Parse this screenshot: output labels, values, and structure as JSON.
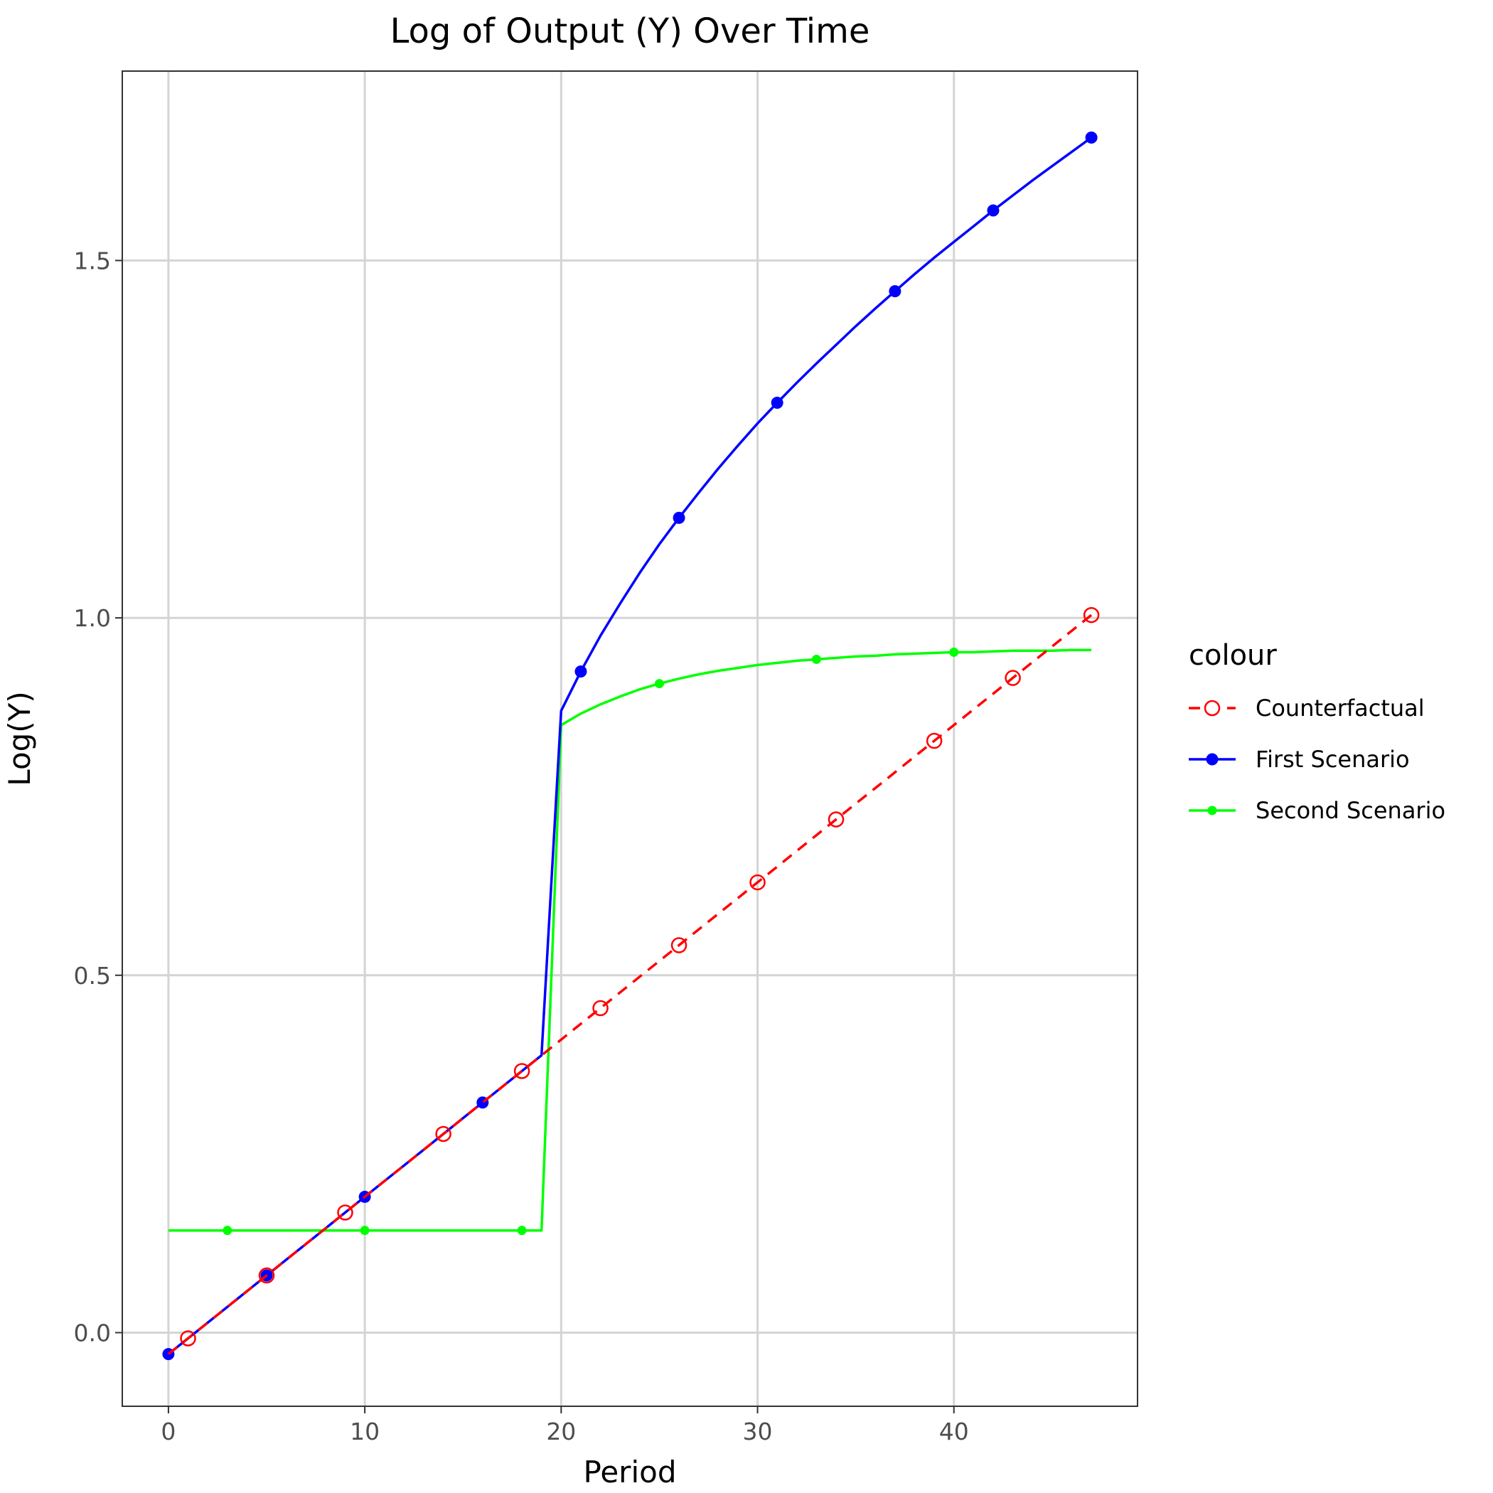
{
  "chart_data": {
    "type": "line",
    "title": "Log of Output (Y) Over Time",
    "xlabel": "Period",
    "ylabel": "Log(Y)",
    "xlim": [
      -2.35,
      49.35
    ],
    "ylim": [
      -0.103,
      1.765
    ],
    "x_ticks": [
      0,
      10,
      20,
      30,
      40
    ],
    "x_tick_labels": [
      "0",
      "10",
      "20",
      "30",
      "40"
    ],
    "y_ticks": [
      0.0,
      0.5,
      1.0,
      1.5
    ],
    "y_tick_labels": [
      "0.0",
      "0.5",
      "1.0",
      "1.5"
    ],
    "grid": true,
    "legend_title": "colour",
    "legend_position": "right",
    "series": [
      {
        "name": "Counterfactual",
        "color": "#ff0000",
        "style": "dashed",
        "marker": "open-circle",
        "x": [
          0,
          1,
          2,
          3,
          4,
          5,
          6,
          7,
          8,
          9,
          10,
          11,
          12,
          13,
          14,
          15,
          16,
          17,
          18,
          19,
          20,
          21,
          22,
          23,
          24,
          25,
          26,
          27,
          28,
          29,
          30,
          31,
          32,
          33,
          34,
          35,
          36,
          37,
          38,
          39,
          40,
          41,
          42,
          43,
          44,
          45,
          46,
          47
        ],
        "y": [
          -0.03,
          -0.008,
          0.014,
          0.036,
          0.058,
          0.08,
          0.102,
          0.124,
          0.146,
          0.168,
          0.19,
          0.212,
          0.234,
          0.256,
          0.278,
          0.3,
          0.322,
          0.344,
          0.366,
          0.388,
          0.41,
          0.432,
          0.454,
          0.476,
          0.498,
          0.52,
          0.542,
          0.564,
          0.586,
          0.608,
          0.63,
          0.652,
          0.674,
          0.696,
          0.718,
          0.74,
          0.762,
          0.784,
          0.806,
          0.828,
          0.85,
          0.872,
          0.894,
          0.916,
          0.938,
          0.96,
          0.982,
          1.004
        ],
        "marker_x": [
          1,
          5,
          9,
          14,
          18,
          22,
          26,
          30,
          34,
          39,
          43,
          47
        ]
      },
      {
        "name": "First Scenario",
        "color": "#0000ff",
        "style": "solid",
        "marker": "filled-circle",
        "x": [
          0,
          1,
          2,
          3,
          4,
          5,
          6,
          7,
          8,
          9,
          10,
          11,
          12,
          13,
          14,
          15,
          16,
          17,
          18,
          19,
          20,
          21,
          22,
          23,
          24,
          25,
          26,
          27,
          28,
          29,
          30,
          31,
          32,
          33,
          34,
          35,
          36,
          37,
          38,
          39,
          40,
          41,
          42,
          43,
          44,
          45,
          46,
          47
        ],
        "y": [
          -0.03,
          -0.008,
          0.014,
          0.036,
          0.058,
          0.08,
          0.102,
          0.124,
          0.146,
          0.168,
          0.19,
          0.212,
          0.234,
          0.256,
          0.278,
          0.3,
          0.322,
          0.344,
          0.366,
          0.388,
          0.87,
          0.925,
          0.975,
          1.02,
          1.063,
          1.103,
          1.14,
          1.175,
          1.209,
          1.241,
          1.272,
          1.301,
          1.329,
          1.356,
          1.382,
          1.408,
          1.433,
          1.457,
          1.481,
          1.504,
          1.526,
          1.548,
          1.57,
          1.591,
          1.612,
          1.632,
          1.652,
          1.672
        ],
        "marker_x": [
          0,
          5,
          10,
          16,
          21,
          26,
          31,
          37,
          42,
          47
        ]
      },
      {
        "name": "Second Scenario",
        "color": "#00ff00",
        "style": "solid",
        "marker": "small-dot",
        "x": [
          0,
          1,
          2,
          3,
          4,
          5,
          6,
          7,
          8,
          9,
          10,
          11,
          12,
          13,
          14,
          15,
          16,
          17,
          18,
          19,
          20,
          21,
          22,
          23,
          24,
          25,
          26,
          27,
          28,
          29,
          30,
          31,
          32,
          33,
          34,
          35,
          36,
          37,
          38,
          39,
          40,
          41,
          42,
          43,
          44,
          45,
          46,
          47
        ],
        "y": [
          0.143,
          0.143,
          0.143,
          0.143,
          0.143,
          0.143,
          0.143,
          0.143,
          0.143,
          0.143,
          0.143,
          0.143,
          0.143,
          0.143,
          0.143,
          0.143,
          0.143,
          0.143,
          0.143,
          0.143,
          0.85,
          0.866,
          0.879,
          0.89,
          0.9,
          0.908,
          0.915,
          0.921,
          0.926,
          0.93,
          0.934,
          0.937,
          0.94,
          0.942,
          0.944,
          0.946,
          0.947,
          0.949,
          0.95,
          0.951,
          0.952,
          0.952,
          0.953,
          0.954,
          0.954,
          0.954,
          0.955,
          0.955
        ],
        "marker_x": [
          3,
          10,
          18,
          25,
          33,
          40
        ]
      }
    ]
  }
}
